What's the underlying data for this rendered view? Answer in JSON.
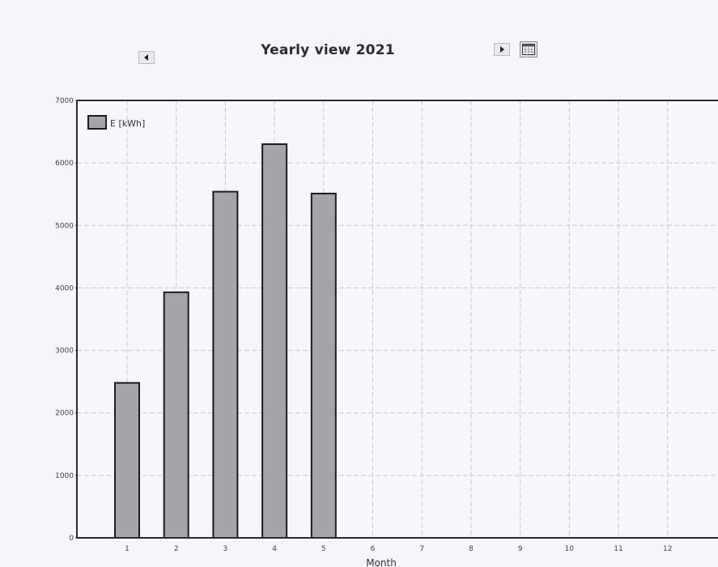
{
  "header": {
    "title": "Yearly view 2021",
    "prev_icon": "triangle-left-icon",
    "next_icon": "triangle-right-icon",
    "calendar_icon": "calendar-icon"
  },
  "colors": {
    "bar_fill": "#a4a4ab",
    "bar_stroke": "#1c1c22",
    "grid": "#c9c9d2",
    "axis": "#2a2a2f",
    "plot_bg": "#f7f6fa"
  },
  "chart_data": {
    "type": "bar",
    "title": "",
    "xlabel": "Month",
    "ylabel": "",
    "categories": [
      "1",
      "2",
      "3",
      "4",
      "5",
      "6",
      "7",
      "8",
      "9",
      "10",
      "11",
      "12"
    ],
    "series": [
      {
        "name": "E [kWh]",
        "values": [
          2480,
          3930,
          5540,
          6300,
          5510,
          null,
          null,
          null,
          null,
          null,
          null,
          null
        ]
      }
    ],
    "ylim": [
      0,
      7000
    ],
    "yticks": [
      "0",
      "1000",
      "2000",
      "3000",
      "4000",
      "5000",
      "6000",
      "7000"
    ],
    "grid": true,
    "legend_position": "top-left"
  }
}
